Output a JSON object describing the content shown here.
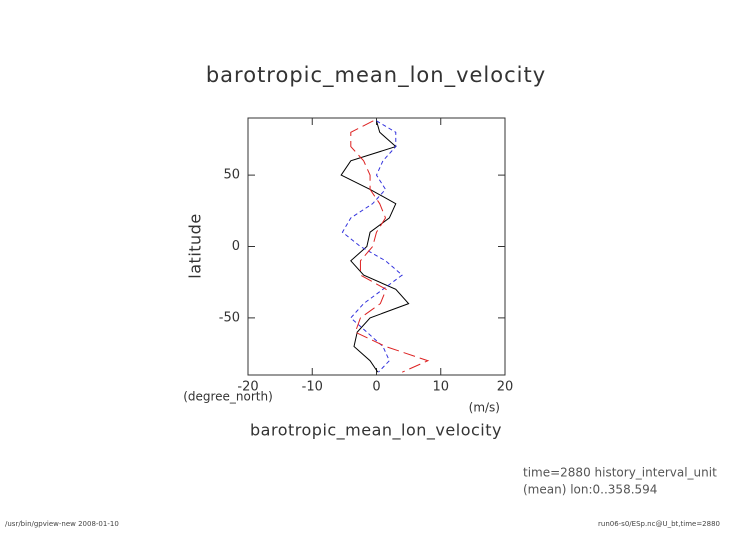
{
  "chart_data": {
    "type": "line",
    "title": "barotropic_mean_lon_velocity",
    "x_label": "barotropic_mean_lon_velocity",
    "x_units": "(m/s)",
    "y_label": "latitude",
    "y_units": "(degree_north)",
    "notes": [
      "time=2880 history_interval_unit",
      "(mean) lon:0..358.594"
    ],
    "footer_left": "/usr/bin/gpview-new  2008-01-10",
    "footer_right": "run06-s0/ESp.nc@U_bt,time=2880",
    "y": [
      88,
      80,
      70,
      60,
      50,
      40,
      30,
      20,
      10,
      0,
      -10,
      -20,
      -30,
      -40,
      -50,
      -60,
      -70,
      -80,
      -88
    ],
    "series": [
      {
        "color": "#000000",
        "dash": "none",
        "values": [
          0,
          0.5,
          3,
          -4,
          -5.5,
          -1,
          3,
          2,
          -1,
          -1.5,
          -4,
          -2,
          3,
          5,
          -1,
          -3,
          -3.5,
          -1,
          0.2
        ]
      },
      {
        "color": "#3333dd",
        "dash": "4 3",
        "values": [
          0,
          3,
          3,
          1,
          0,
          1.4,
          -0.6,
          -4,
          -5.3,
          -2.5,
          1.4,
          4,
          1,
          -2,
          -4,
          -1.5,
          1,
          2,
          0.3
        ]
      },
      {
        "color": "#dd2222",
        "dash": "12 5",
        "values": [
          -0.5,
          -4,
          -4,
          -2,
          -1,
          -1,
          0.5,
          1.4,
          0,
          -0.6,
          -2.5,
          -2.5,
          1.5,
          0.6,
          -2.5,
          -3.3,
          1.4,
          8,
          4
        ]
      }
    ],
    "xlim": [
      -20,
      20
    ],
    "ylim": [
      -90,
      90
    ],
    "xticks": [
      -20,
      -10,
      0,
      10,
      20
    ],
    "yticks": [
      -50,
      0,
      50
    ]
  }
}
